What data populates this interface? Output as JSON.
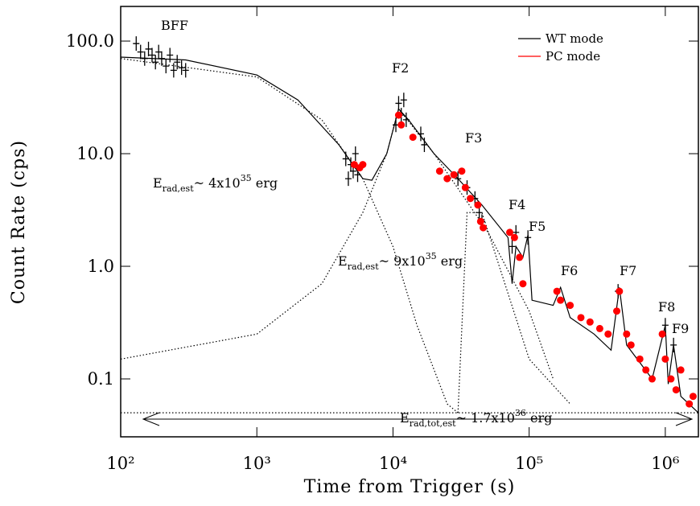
{
  "chart_data": {
    "type": "scatter",
    "xlabel": "Time from Trigger (s)",
    "ylabel": "Count Rate (cps)",
    "xscale": "log",
    "yscale": "log",
    "xlim": [
      100,
      1750000
    ],
    "ylim": [
      0.0306,
      203
    ],
    "xticks": [
      {
        "value": 100,
        "label": "10²"
      },
      {
        "value": 1000,
        "label": "10³"
      },
      {
        "value": 10000,
        "label": "10⁴"
      },
      {
        "value": 100000,
        "label": "10⁵"
      },
      {
        "value": 1000000,
        "label": "10⁶"
      }
    ],
    "yticks": [
      {
        "value": 100,
        "label": "100.0"
      },
      {
        "value": 10,
        "label": "10.0"
      },
      {
        "value": 1,
        "label": "1.0"
      },
      0.1
    ],
    "legend": "upper right",
    "series": [
      {
        "name": "WT mode",
        "color": "#000000",
        "marker": "cross",
        "x": [
          130,
          140,
          150,
          160,
          170,
          180,
          190,
          200,
          215,
          230,
          245,
          260,
          280,
          300,
          4500,
          4700,
          4900,
          5100,
          5300,
          5500,
          10500,
          11000,
          11500,
          12000,
          12500,
          16000,
          17000,
          30000,
          35000,
          40000,
          43000,
          45000,
          75000,
          80000,
          98000,
          450000,
          1000000,
          1150000
        ],
        "values": [
          95,
          80,
          70,
          85,
          75,
          65,
          80,
          70,
          60,
          75,
          55,
          65,
          58,
          55,
          9,
          6,
          8,
          7,
          10,
          6.5,
          18,
          28,
          22,
          30,
          20,
          15,
          12,
          6,
          5,
          4,
          3,
          2.5,
          1.5,
          2,
          1.8,
          0.6,
          0.3,
          0.2
        ]
      },
      {
        "name": "PC mode",
        "color": "#ff0000",
        "marker": "circle",
        "x": [
          5200,
          5700,
          6000,
          11000,
          11500,
          14000,
          22000,
          25000,
          28000,
          32000,
          34000,
          37000,
          42000,
          44000,
          46000,
          72000,
          78000,
          85000,
          90000,
          160000,
          170000,
          200000,
          240000,
          280000,
          330000,
          380000,
          440000,
          460000,
          520000,
          560000,
          650000,
          720000,
          800000,
          950000,
          1000000,
          1100000,
          1200000,
          1300000,
          1500000,
          1600000
        ],
        "values": [
          8,
          7.5,
          8,
          22,
          18,
          14,
          7,
          6,
          6.5,
          7,
          5,
          4,
          3.5,
          2.5,
          2.2,
          2,
          1.8,
          1.2,
          0.7,
          0.6,
          0.5,
          0.45,
          0.35,
          0.32,
          0.28,
          0.25,
          0.4,
          0.6,
          0.25,
          0.2,
          0.15,
          0.12,
          0.1,
          0.25,
          0.15,
          0.1,
          0.08,
          0.12,
          0.06,
          0.07
        ]
      }
    ],
    "model_curves": [
      {
        "style": "solid",
        "color": "#000000",
        "x": [
          100,
          300,
          1000,
          2000,
          4000,
          6000,
          7000,
          9000,
          11000,
          13000,
          20000,
          30000,
          45000,
          70000,
          75000,
          80000,
          90000,
          98000,
          105000,
          150000,
          170000,
          200000,
          300000,
          400000,
          460000,
          520000,
          800000,
          1000000,
          1050000,
          1150000,
          1300000,
          1750000
        ],
        "values": [
          72,
          68,
          50,
          30,
          12,
          6,
          5.8,
          10,
          25,
          20,
          10,
          6,
          3.5,
          1.8,
          0.7,
          1.5,
          1.2,
          1.9,
          0.5,
          0.45,
          0.65,
          0.35,
          0.25,
          0.18,
          0.65,
          0.2,
          0.1,
          0.3,
          0.09,
          0.2,
          0.07,
          0.05
        ]
      },
      {
        "style": "dotted",
        "color": "#000000",
        "x": [
          100,
          1000,
          3000,
          6000,
          10000,
          15000,
          25000,
          30000
        ],
        "values": [
          70,
          48,
          20,
          6,
          1.5,
          0.3,
          0.06,
          0.05
        ]
      },
      {
        "style": "dotted",
        "color": "#000000",
        "x": [
          100,
          1000,
          3000,
          6000,
          9000,
          11000,
          20000,
          50000,
          100000,
          150000
        ],
        "values": [
          0.15,
          0.25,
          0.7,
          3,
          10,
          25,
          10,
          2,
          0.4,
          0.1
        ]
      },
      {
        "style": "dotted",
        "color": "#000000",
        "x": [
          30000,
          35000,
          45000,
          100000,
          200000
        ],
        "values": [
          0.05,
          3,
          3,
          0.15,
          0.06
        ]
      },
      {
        "style": "dotted",
        "color": "#000000",
        "x": [
          100,
          1750000
        ],
        "values": [
          0.05,
          0.05
        ]
      }
    ],
    "flare_labels": [
      "BFF",
      "F2",
      "F3",
      "F4",
      "F5",
      "F6",
      "F7",
      "F8",
      "F9"
    ],
    "energy_labels": [
      {
        "symbol": "E",
        "subscript": "rad,est",
        "approx": "~ 4x10",
        "exponent": "35",
        "unit": " erg"
      },
      {
        "symbol": "E",
        "subscript": "rad,est",
        "approx": "~ 9x10",
        "exponent": "35",
        "unit": " erg"
      },
      {
        "symbol": "E",
        "subscript": "rad,tot,est",
        "approx": "~ 1.7x10",
        "exponent": "36",
        "unit": " erg"
      }
    ]
  }
}
